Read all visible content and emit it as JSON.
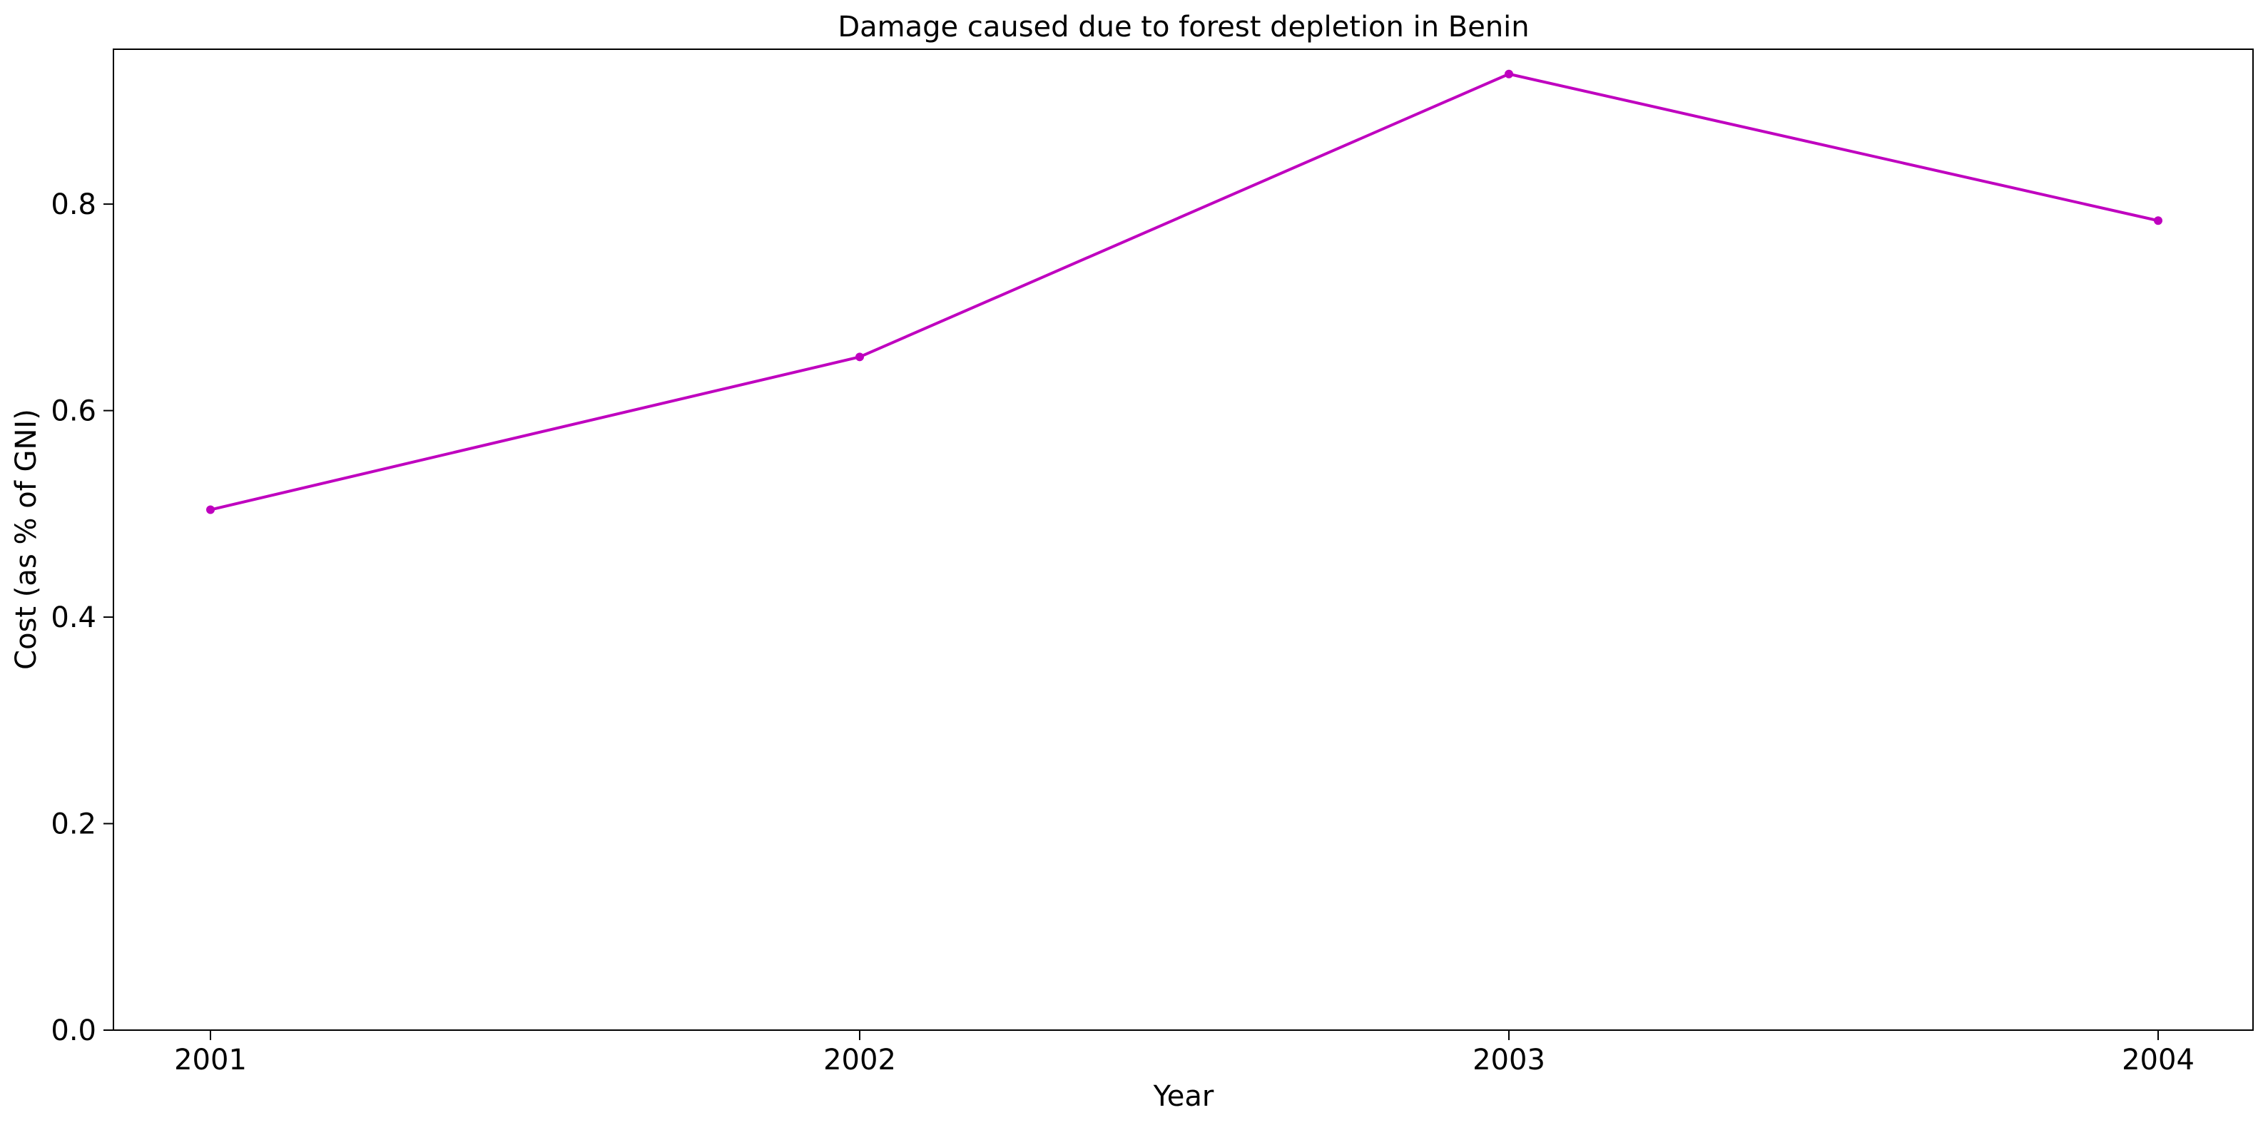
{
  "chart_data": {
    "type": "line",
    "title": "Damage caused due to forest depletion in Benin",
    "xlabel": "Year",
    "ylabel": "Cost (as % of GNI)",
    "x": [
      "2001",
      "2002",
      "2003",
      "2004"
    ],
    "series": [
      {
        "values": [
          0.504,
          0.652,
          0.926,
          0.784
        ],
        "color": "#bf00bf",
        "marker": "circle"
      }
    ],
    "ylim": [
      0,
      0.95
    ],
    "yticks": [
      0.0,
      0.2,
      0.4,
      0.6,
      0.8
    ],
    "ytick_labels": [
      "0.0",
      "0.2",
      "0.4",
      "0.6",
      "0.8"
    ],
    "grid": false,
    "legend": false
  }
}
